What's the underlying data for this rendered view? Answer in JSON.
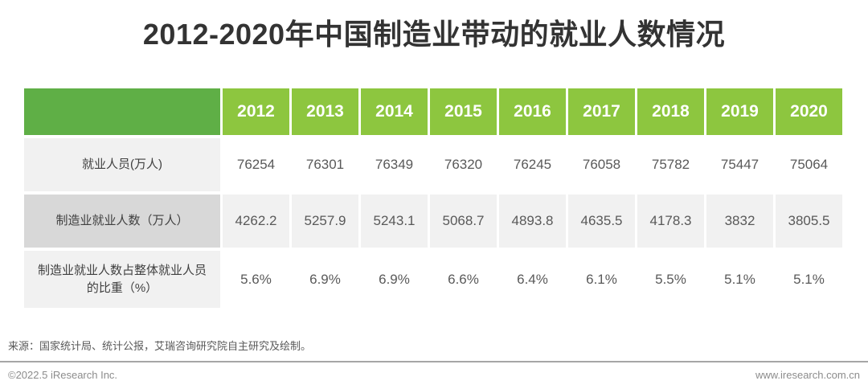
{
  "title": "2012-2020年中国制造业带动的就业人数情况",
  "colors": {
    "corner_green": "#5faf46",
    "year_header_green": "#8dc63f",
    "label_gray": "#f1f1f1",
    "label_dark_gray": "#d8d8d8",
    "title_color": "#333333"
  },
  "chart_data": {
    "type": "table",
    "title": "2012-2020年中国制造业带动的就业人数情况",
    "categories": [
      "2012",
      "2013",
      "2014",
      "2015",
      "2016",
      "2017",
      "2018",
      "2019",
      "2020"
    ],
    "series": [
      {
        "name": "就业人员(万人)",
        "values": [
          76254,
          76301,
          76349,
          76320,
          76245,
          76058,
          75782,
          75447,
          75064
        ]
      },
      {
        "name": "制造业就业人数（万人）",
        "values": [
          4262.2,
          5257.9,
          5243.1,
          5068.7,
          4893.8,
          4635.5,
          4178.3,
          3832,
          3805.5
        ]
      },
      {
        "name": "制造业就业人数占整体就业人员的比重（%）",
        "values": [
          5.6,
          6.9,
          6.9,
          6.6,
          6.4,
          6.1,
          5.5,
          5.1,
          5.1
        ]
      }
    ]
  },
  "table": {
    "corner_label": "",
    "years": [
      "2012",
      "2013",
      "2014",
      "2015",
      "2016",
      "2017",
      "2018",
      "2019",
      "2020"
    ],
    "rows": [
      {
        "label": "就业人员(万人)",
        "cells": [
          "76254",
          "76301",
          "76349",
          "76320",
          "76245",
          "76058",
          "75782",
          "75447",
          "75064"
        ]
      },
      {
        "label": "制造业就业人数（万人）",
        "cells": [
          "4262.2",
          "5257.9",
          "5243.1",
          "5068.7",
          "4893.8",
          "4635.5",
          "4178.3",
          "3832",
          "3805.5"
        ]
      },
      {
        "label": "制造业就业人数占整体就业人员的比重（%）",
        "cells": [
          "5.6%",
          "6.9%",
          "6.9%",
          "6.6%",
          "6.4%",
          "6.1%",
          "5.5%",
          "5.1%",
          "5.1%"
        ]
      }
    ]
  },
  "source_note": "来源：国家统计局、统计公报，艾瑞咨询研究院自主研究及绘制。",
  "footer": {
    "copyright": "©2022.5 iResearch Inc.",
    "website": "www.iresearch.com.cn"
  }
}
